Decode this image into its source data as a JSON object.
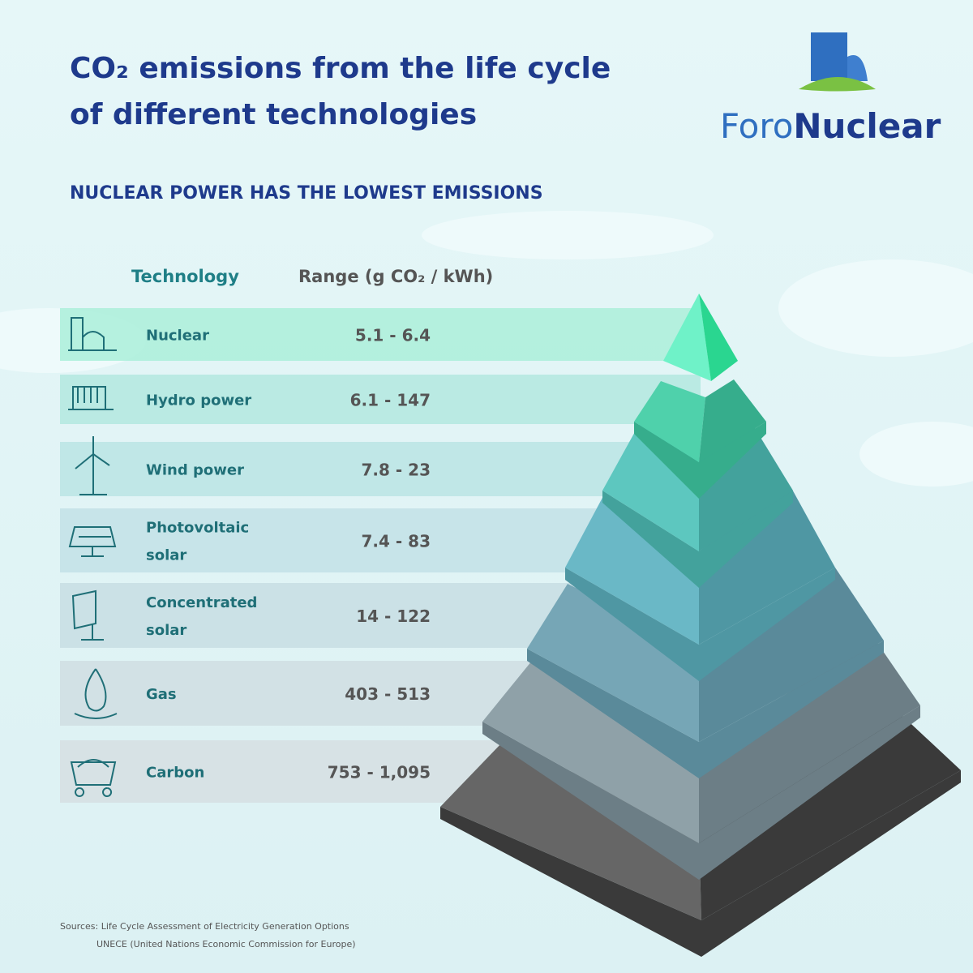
{
  "header": {
    "title": [
      "CO₂ emissions from the life cycle",
      "of different technologies"
    ],
    "subtitle": "NUCLEAR POWER HAS THE LOWEST EMISSIONS"
  },
  "logo": {
    "brand_light": "Foro",
    "brand_bold": "Nuclear"
  },
  "table": {
    "columns": [
      "Technology",
      "Range (g CO₂ / kWh)"
    ],
    "rows": [
      {
        "name": [
          "Nuclear"
        ],
        "range": "5.1 - 6.4"
      },
      {
        "name": [
          "Hydro power"
        ],
        "range": "6.1 - 147"
      },
      {
        "name": [
          "Wind power"
        ],
        "range": "7.8 - 23"
      },
      {
        "name": [
          "Photovoltaic",
          "solar"
        ],
        "range": "7.4 - 83"
      },
      {
        "name": [
          "Concentrated",
          "solar"
        ],
        "range": "14 - 122"
      },
      {
        "name": [
          "Gas"
        ],
        "range": "403 - 513"
      },
      {
        "name": [
          "Carbon"
        ],
        "range": "753 - 1,095"
      }
    ]
  },
  "sources": [
    "Sources:  Life Cycle Assessment of Electricity Generation Options",
    "UNECE (United Nations Economic Commission for Europe)"
  ]
}
